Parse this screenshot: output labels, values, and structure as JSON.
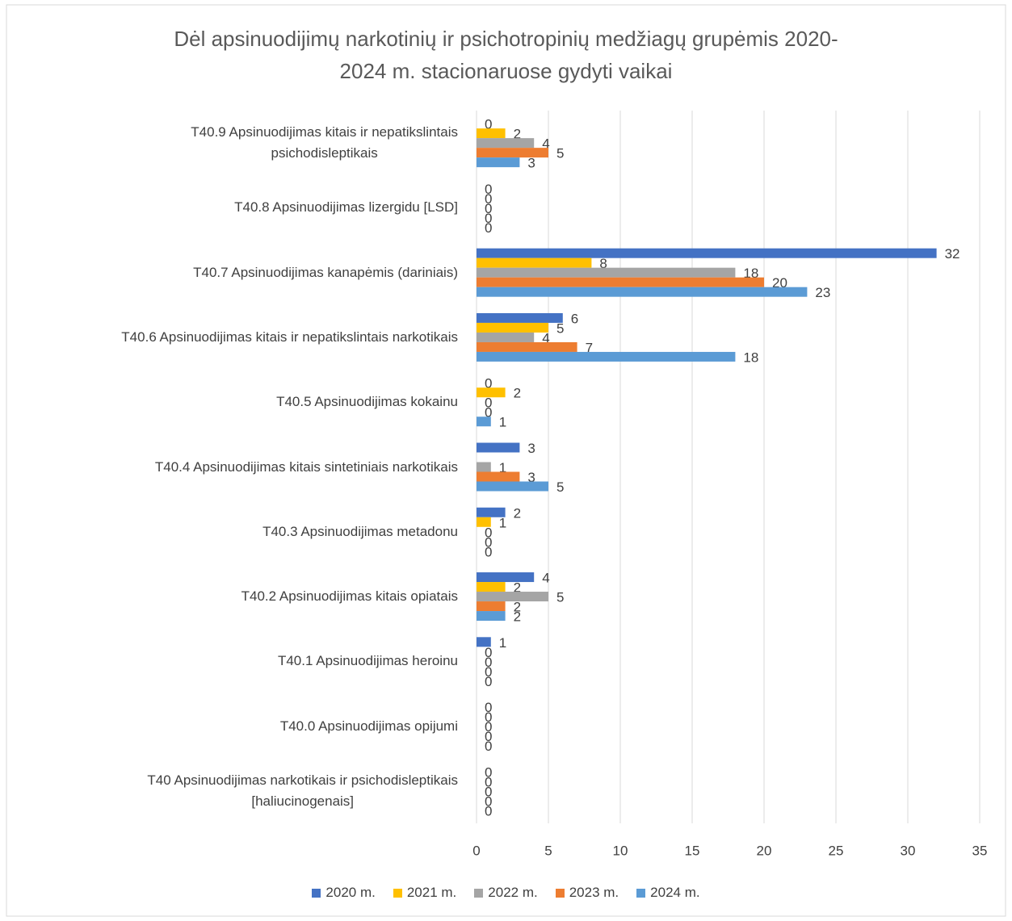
{
  "chart_data": {
    "type": "bar",
    "orientation": "horizontal",
    "title": "Dėl apsinuodijimų narkotinių ir psichotropinių medžiagų grupėmis 2020-\n2024 m. stacionaruose gydyti vaikai",
    "categories": [
      "T40.9 Apsinuodijimas kitais ir nepatikslintais\npsichodisleptikais",
      "T40.8 Apsinuodijimas lizergidu [LSD]",
      "T40.7 Apsinuodijimas kanapėmis (dariniais)",
      "T40.6 Apsinuodijimas kitais ir nepatikslintais narkotikais",
      "T40.5 Apsinuodijimas kokainu",
      "T40.4 Apsinuodijimas kitais sintetiniais narkotikais",
      "T40.3 Apsinuodijimas metadonu",
      "T40.2 Apsinuodijimas kitais opiatais",
      "T40.1 Apsinuodijimas heroinu",
      "T40.0 Apsinuodijimas opijumi",
      "T40 Apsinuodijimas narkotikais ir psichodisleptikais\n[haliucinogenais]"
    ],
    "series": [
      {
        "name": "2020 m.",
        "color": "#4472c4",
        "values": [
          0,
          0,
          32,
          6,
          0,
          3,
          2,
          4,
          1,
          0,
          0
        ]
      },
      {
        "name": "2021 m.",
        "color": "#ffc000",
        "values": [
          2,
          0,
          8,
          5,
          2,
          null,
          1,
          2,
          0,
          0,
          0
        ]
      },
      {
        "name": "2022 m.",
        "color": "#a5a5a5",
        "values": [
          4,
          0,
          18,
          4,
          0,
          1,
          0,
          5,
          0,
          0,
          0
        ]
      },
      {
        "name": "2023 m.",
        "color": "#ed7d31",
        "values": [
          5,
          0,
          20,
          7,
          0,
          3,
          0,
          2,
          0,
          0,
          0
        ]
      },
      {
        "name": "2024 m.",
        "color": "#5b9bd5",
        "values": [
          3,
          0,
          23,
          18,
          1,
          5,
          0,
          2,
          0,
          0,
          0
        ]
      }
    ],
    "xlim": [
      0,
      35
    ],
    "xticks": [
      0,
      5,
      10,
      15,
      20,
      25,
      30,
      35
    ],
    "grid": true,
    "legend": "bottom"
  }
}
